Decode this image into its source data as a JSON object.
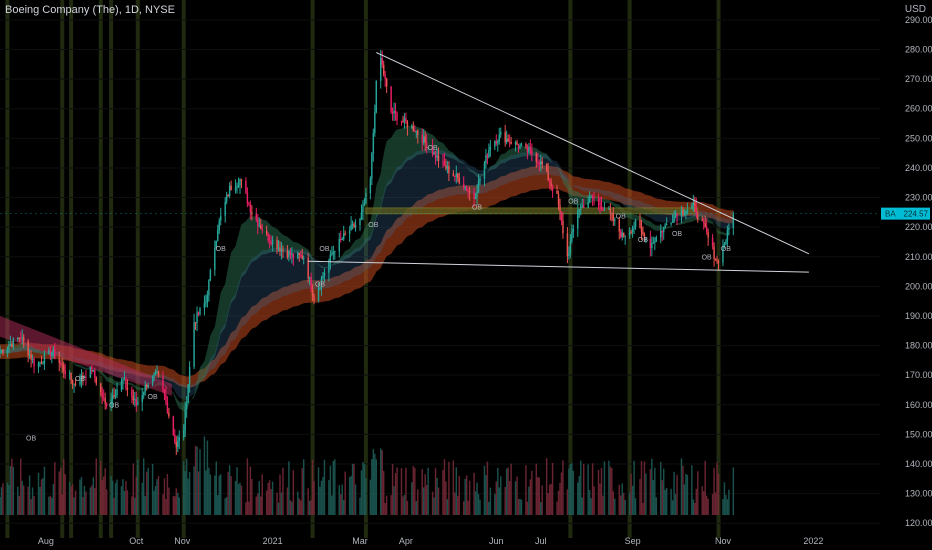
{
  "header": {
    "title": "Boeing Company (The), 1D, NYSE",
    "currency": "USD"
  },
  "price_tag": {
    "symbol": "BA",
    "value": "224.57",
    "color": "#00bcd4"
  },
  "colors": {
    "up": "#26a69a",
    "down": "#ef5350",
    "pink": "#e91e63",
    "trendline": "#d1d4dc",
    "zone_fill": "#5d5d1f",
    "vbar": "#1f2a10",
    "ribbon_red": "#c2491f",
    "ribbon_pink": "#b52e5b"
  },
  "chart_data": {
    "type": "candlestick",
    "title": "Boeing Company (The), 1D, NYSE",
    "ylabel": "USD",
    "ylim": [
      115,
      292
    ],
    "y_ticks": [
      120,
      130,
      140,
      150,
      160,
      170,
      180,
      190,
      200,
      210,
      220,
      230,
      240,
      250,
      260,
      270,
      280,
      290
    ],
    "x_ticks": [
      "Aug",
      "Oct",
      "Nov",
      "2021",
      "Mar",
      "Apr",
      "Jun",
      "Jul",
      "Sep",
      "Nov",
      "2022"
    ],
    "x_range": [
      "2020-07-01",
      "2022-02-15"
    ],
    "x_tick_dates": [
      "2020-08-01",
      "2020-10-01",
      "2020-11-01",
      "2021-01-01",
      "2021-03-01",
      "2021-04-01",
      "2021-06-01",
      "2021-07-01",
      "2021-09-01",
      "2021-11-01",
      "2022-01-01"
    ],
    "price_path": [
      [
        "2020-07-01",
        178
      ],
      [
        "2020-07-15",
        183
      ],
      [
        "2020-07-25",
        173
      ],
      [
        "2020-08-05",
        178
      ],
      [
        "2020-08-20",
        167
      ],
      [
        "2020-09-01",
        172
      ],
      [
        "2020-09-10",
        160
      ],
      [
        "2020-09-22",
        168
      ],
      [
        "2020-10-01",
        160
      ],
      [
        "2020-10-08",
        167
      ],
      [
        "2020-10-15",
        170
      ],
      [
        "2020-10-20",
        163
      ],
      [
        "2020-10-28",
        146
      ],
      [
        "2020-11-02",
        152
      ],
      [
        "2020-11-09",
        188
      ],
      [
        "2020-11-17",
        195
      ],
      [
        "2020-11-25",
        220
      ],
      [
        "2020-12-03",
        233
      ],
      [
        "2020-12-10",
        236
      ],
      [
        "2020-12-18",
        225
      ],
      [
        "2020-12-28",
        217
      ],
      [
        "2021-01-06",
        213
      ],
      [
        "2021-01-15",
        210
      ],
      [
        "2021-01-22",
        210
      ],
      [
        "2021-01-29",
        196
      ],
      [
        "2021-02-05",
        205
      ],
      [
        "2021-02-12",
        213
      ],
      [
        "2021-02-22",
        219
      ],
      [
        "2021-03-01",
        222
      ],
      [
        "2021-03-08",
        236
      ],
      [
        "2021-03-12",
        268
      ],
      [
        "2021-03-15",
        277
      ],
      [
        "2021-03-22",
        259
      ],
      [
        "2021-03-29",
        256
      ],
      [
        "2021-04-07",
        253
      ],
      [
        "2021-04-15",
        248
      ],
      [
        "2021-04-26",
        241
      ],
      [
        "2021-05-07",
        236
      ],
      [
        "2021-05-17",
        230
      ],
      [
        "2021-05-28",
        248
      ],
      [
        "2021-06-04",
        251
      ],
      [
        "2021-06-14",
        248
      ],
      [
        "2021-06-25",
        245
      ],
      [
        "2021-07-02",
        241
      ],
      [
        "2021-07-12",
        230
      ],
      [
        "2021-07-19",
        210
      ],
      [
        "2021-07-26",
        226
      ],
      [
        "2021-08-05",
        230
      ],
      [
        "2021-08-16",
        225
      ],
      [
        "2021-08-25",
        217
      ],
      [
        "2021-09-03",
        221
      ],
      [
        "2021-09-13",
        214
      ],
      [
        "2021-09-24",
        221
      ],
      [
        "2021-10-01",
        225
      ],
      [
        "2021-10-12",
        227
      ],
      [
        "2021-10-20",
        219
      ],
      [
        "2021-10-28",
        208
      ],
      [
        "2021-11-03",
        216
      ],
      [
        "2021-11-08",
        224.57
      ]
    ],
    "trendlines": [
      {
        "from": [
          "2021-03-12",
          279
        ],
        "to": [
          "2021-12-29",
          211
        ]
      },
      {
        "from": [
          "2021-01-25",
          208.5
        ],
        "to": [
          "2021-12-29",
          204.8
        ]
      }
    ],
    "zone": {
      "from": "2021-03-05",
      "to": "2021-10-15",
      "low": 224.5,
      "high": 226.5
    },
    "highlight_dates": [
      "2020-07-06",
      "2020-08-12",
      "2020-08-18",
      "2020-09-07",
      "2020-09-14",
      "2020-10-02",
      "2020-11-02",
      "2021-01-28",
      "2021-03-05",
      "2021-07-21",
      "2021-08-30",
      "2021-10-29"
    ],
    "markers": [
      {
        "label": "OB",
        "date": "2020-07-22",
        "y": 148
      },
      {
        "label": "OB",
        "date": "2020-08-24",
        "y": 168
      },
      {
        "label": "OB",
        "date": "2020-09-16",
        "y": 159
      },
      {
        "label": "OB",
        "date": "2020-10-12",
        "y": 162
      },
      {
        "label": "OB",
        "date": "2020-11-27",
        "y": 212
      },
      {
        "label": "OB",
        "date": "2021-02-02",
        "y": 200
      },
      {
        "label": "OB",
        "date": "2021-02-05",
        "y": 212
      },
      {
        "label": "OB",
        "date": "2021-03-10",
        "y": 220
      },
      {
        "label": "OB",
        "date": "2021-04-19",
        "y": 246
      },
      {
        "label": "OB",
        "date": "2021-05-19",
        "y": 226
      },
      {
        "label": "OB",
        "date": "2021-07-23",
        "y": 228
      },
      {
        "label": "OB",
        "date": "2021-08-24",
        "y": 223
      },
      {
        "label": "OB",
        "date": "2021-09-08",
        "y": 215
      },
      {
        "label": "OB",
        "date": "2021-10-01",
        "y": 217
      },
      {
        "label": "OB",
        "date": "2021-10-21",
        "y": 209
      },
      {
        "label": "OB",
        "date": "2021-11-03",
        "y": 212
      }
    ]
  }
}
